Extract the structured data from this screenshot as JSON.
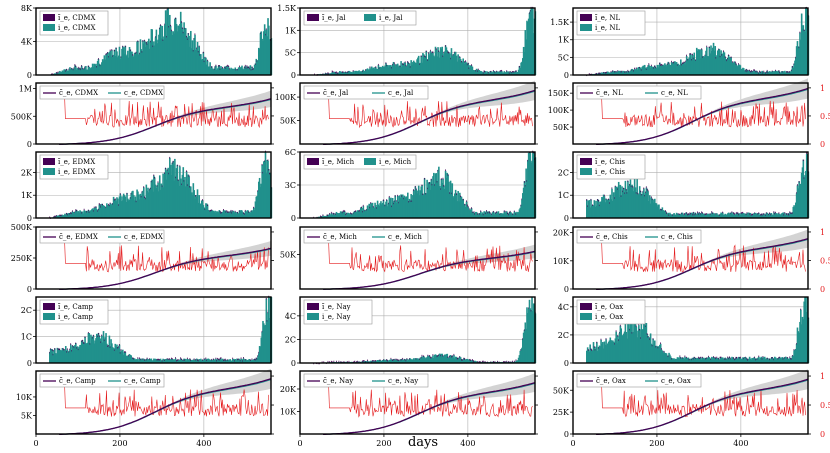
{
  "chart_data": {
    "type": "bar",
    "x_label": "days",
    "x_range": [
      0,
      560
    ],
    "x_ticks": [
      0,
      200,
      400
    ],
    "states": [
      {
        "name": "CDMX",
        "incidence": {
          "ylim": [
            0,
            8000
          ],
          "ticks": [
            "0",
            "4K",
            "8K"
          ],
          "tick_values": [
            0,
            4000,
            8000
          ],
          "legend": [
            "ĩ_e, CDMX",
            "i_e, CDMX"
          ],
          "peaks": [
            {
              "day": 330,
              "value": 7500
            },
            {
              "day": 545,
              "value": 5800
            }
          ]
        },
        "cumulative": {
          "ylim": [
            0,
            1100000
          ],
          "ticks": [
            "0",
            "500K",
            "1M"
          ],
          "tick_values": [
            0,
            500000,
            1000000
          ],
          "right_ticks": [],
          "legend": [
            "c̃_e, CDMX",
            "c_e, CDMX"
          ],
          "final_value": 820000
        }
      },
      {
        "name": "Jal",
        "incidence": {
          "ylim": [
            0,
            1500
          ],
          "ticks": [
            "0",
            "5C",
            "1K",
            "1.5K"
          ],
          "tick_values": [
            0,
            500,
            1000,
            1500
          ],
          "legend": [
            "ĩ_e, Jal",
            "i_e, Jal"
          ],
          "peaks": [
            {
              "day": 340,
              "value": 600
            },
            {
              "day": 550,
              "value": 1400
            }
          ]
        },
        "cumulative": {
          "ylim": [
            0,
            130000
          ],
          "ticks": [
            "50K",
            "100K"
          ],
          "tick_values": [
            50000,
            100000
          ],
          "right_ticks": [],
          "legend": [
            "c̃_e, Jal",
            "c_e, Jal"
          ],
          "final_value": 115000
        }
      },
      {
        "name": "NL",
        "incidence": {
          "ylim": [
            0,
            1900
          ],
          "ticks": [
            "0",
            "5C",
            "1K",
            "1.5K"
          ],
          "tick_values": [
            0,
            500,
            1000,
            1500
          ],
          "legend": [
            "ĩ_e, NL",
            "i_e, NL"
          ],
          "peaks": [
            {
              "day": 330,
              "value": 800
            },
            {
              "day": 550,
              "value": 1650
            }
          ]
        },
        "cumulative": {
          "ylim": [
            0,
            180000
          ],
          "ticks": [
            "50K",
            "100K",
            "150K"
          ],
          "tick_values": [
            50000,
            100000,
            150000
          ],
          "right_ticks": [
            "0",
            "0.5",
            "1"
          ],
          "legend": [
            "c̃_e, NL",
            "c_e, NL"
          ],
          "final_value": 165000
        }
      },
      {
        "name": "EDMX",
        "incidence": {
          "ylim": [
            0,
            2900
          ],
          "ticks": [
            "0",
            "1K",
            "2K"
          ],
          "tick_values": [
            0,
            1000,
            2000
          ],
          "legend": [
            "ĩ_e, EDMX",
            "i_e, EDMX"
          ],
          "peaks": [
            {
              "day": 330,
              "value": 2300
            },
            {
              "day": 545,
              "value": 2600
            }
          ]
        },
        "cumulative": {
          "ylim": [
            0,
            500000
          ],
          "ticks": [
            "0",
            "250K",
            "500K"
          ],
          "tick_values": [
            0,
            250000,
            500000
          ],
          "right_ticks": [],
          "legend": [
            "c̃_e, EDMX",
            "c_e, EDMX"
          ],
          "final_value": 330000
        }
      },
      {
        "name": "Mich",
        "incidence": {
          "ylim": [
            0,
            600
          ],
          "ticks": [
            "0",
            "3C",
            "6C"
          ],
          "tick_values": [
            0,
            300,
            600
          ],
          "legend": [
            "ĩ_e, Mich",
            "i_e, Mich"
          ],
          "peaks": [
            {
              "day": 330,
              "value": 400
            },
            {
              "day": 550,
              "value": 560
            }
          ]
        },
        "cumulative": {
          "ylim": [
            0,
            90000
          ],
          "ticks": [
            "50K"
          ],
          "tick_values": [
            50000
          ],
          "right_ticks": [],
          "legend": [
            "c̃_e, Mich",
            "c_e, Mich"
          ],
          "final_value": 55000
        }
      },
      {
        "name": "Chis",
        "incidence": {
          "ylim": [
            0,
            290
          ],
          "ticks": [
            "0",
            "1C",
            "2C"
          ],
          "tick_values": [
            0,
            100,
            200
          ],
          "legend": [
            "ĩ_e, Chis",
            "i_e, Chis"
          ],
          "peaks": [
            {
              "day": 140,
              "value": 160
            },
            {
              "day": 550,
              "value": 250
            }
          ]
        },
        "cumulative": {
          "ylim": [
            0,
            22000
          ],
          "ticks": [
            "0",
            "10K",
            "20K"
          ],
          "tick_values": [
            0,
            10000,
            20000
          ],
          "right_ticks": [
            "0",
            "0.5",
            "1"
          ],
          "legend": [
            "c̃_e, Chis",
            "c_e, Chis"
          ],
          "final_value": 18000
        }
      },
      {
        "name": "Camp",
        "incidence": {
          "ylim": [
            0,
            250
          ],
          "ticks": [
            "0",
            "1C",
            "2C"
          ],
          "tick_values": [
            0,
            100,
            200
          ],
          "legend": [
            "ĩ_e, Camp",
            "i_e, Camp"
          ],
          "peaks": [
            {
              "day": 150,
              "value": 110
            },
            {
              "day": 555,
              "value": 240
            }
          ]
        },
        "cumulative": {
          "ylim": [
            0,
            17000
          ],
          "ticks": [
            "5K",
            "10K"
          ],
          "tick_values": [
            5000,
            10000
          ],
          "right_ticks": [],
          "legend": [
            "c̃_e, Camp",
            "c_e, Camp"
          ],
          "final_value": 15000
        }
      },
      {
        "name": "Nay",
        "incidence": {
          "ylim": [
            0,
            560
          ],
          "ticks": [
            "0",
            "2C",
            "4C"
          ],
          "tick_values": [
            0,
            200,
            400
          ],
          "legend": [
            "ĩ_e, Nay",
            "i_e, Nay"
          ],
          "peaks": [
            {
              "day": 340,
              "value": 70
            },
            {
              "day": 550,
              "value": 530
            }
          ]
        },
        "cumulative": {
          "ylim": [
            0,
            28000
          ],
          "ticks": [
            "10K",
            "20K"
          ],
          "tick_values": [
            10000,
            20000
          ],
          "right_ticks": [],
          "legend": [
            "c̃_e, Nay",
            "c_e, Nay"
          ],
          "final_value": 23000
        }
      },
      {
        "name": "Oax",
        "incidence": {
          "ylim": [
            0,
            470
          ],
          "ticks": [
            "0",
            "2C",
            "4C"
          ],
          "tick_values": [
            0,
            200,
            400
          ],
          "legend": [
            "ĩ_e, Oax",
            "i_e, Oax"
          ],
          "peaks": [
            {
              "day": 150,
              "value": 290
            },
            {
              "day": 550,
              "value": 440
            }
          ]
        },
        "cumulative": {
          "ylim": [
            0,
            72000
          ],
          "ticks": [
            "0",
            "25K",
            "50K"
          ],
          "tick_values": [
            0,
            25000,
            50000
          ],
          "right_ticks": [
            "0",
            "0.5",
            "1"
          ],
          "legend": [
            "c̃_e, Oax",
            "c_e, Oax"
          ],
          "final_value": 63000
        }
      }
    ],
    "colors": {
      "reconstructed": "#440154",
      "reported": "#21918c",
      "ratio": "#e41a1c",
      "band": "#d3d3d3"
    }
  }
}
